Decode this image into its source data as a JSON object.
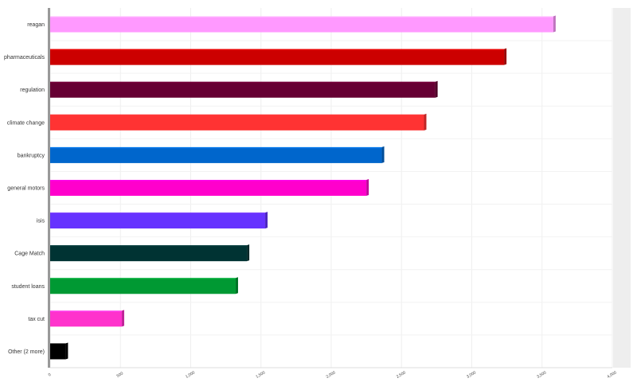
{
  "chart_data": {
    "type": "bar",
    "orientation": "horizontal",
    "categories": [
      "reagan",
      "pharmaceuticals",
      "regulation",
      "climate change",
      "bankruptcy",
      "general motors",
      "isis",
      "Cage Match",
      "student loans",
      "tax cut",
      "Other (2 more)"
    ],
    "values": [
      3580,
      3230,
      2740,
      2660,
      2360,
      2250,
      1530,
      1400,
      1320,
      510,
      110
    ],
    "colors": [
      "#ff99ff",
      "#cc0000",
      "#660033",
      "#ff3333",
      "#0066cc",
      "#ff00cc",
      "#6633ff",
      "#003333",
      "#009933",
      "#ff33cc",
      "#000000"
    ],
    "xlim": [
      0,
      4000
    ],
    "xticks": [
      0,
      500,
      1000,
      1500,
      2000,
      2500,
      3000,
      3500,
      4000
    ],
    "xtick_labels": [
      "0",
      "500",
      "1,000",
      "1,500",
      "2,000",
      "2,500",
      "3,000",
      "3,500",
      "4,000"
    ],
    "grid": true,
    "title": "",
    "xlabel": "",
    "ylabel": ""
  }
}
